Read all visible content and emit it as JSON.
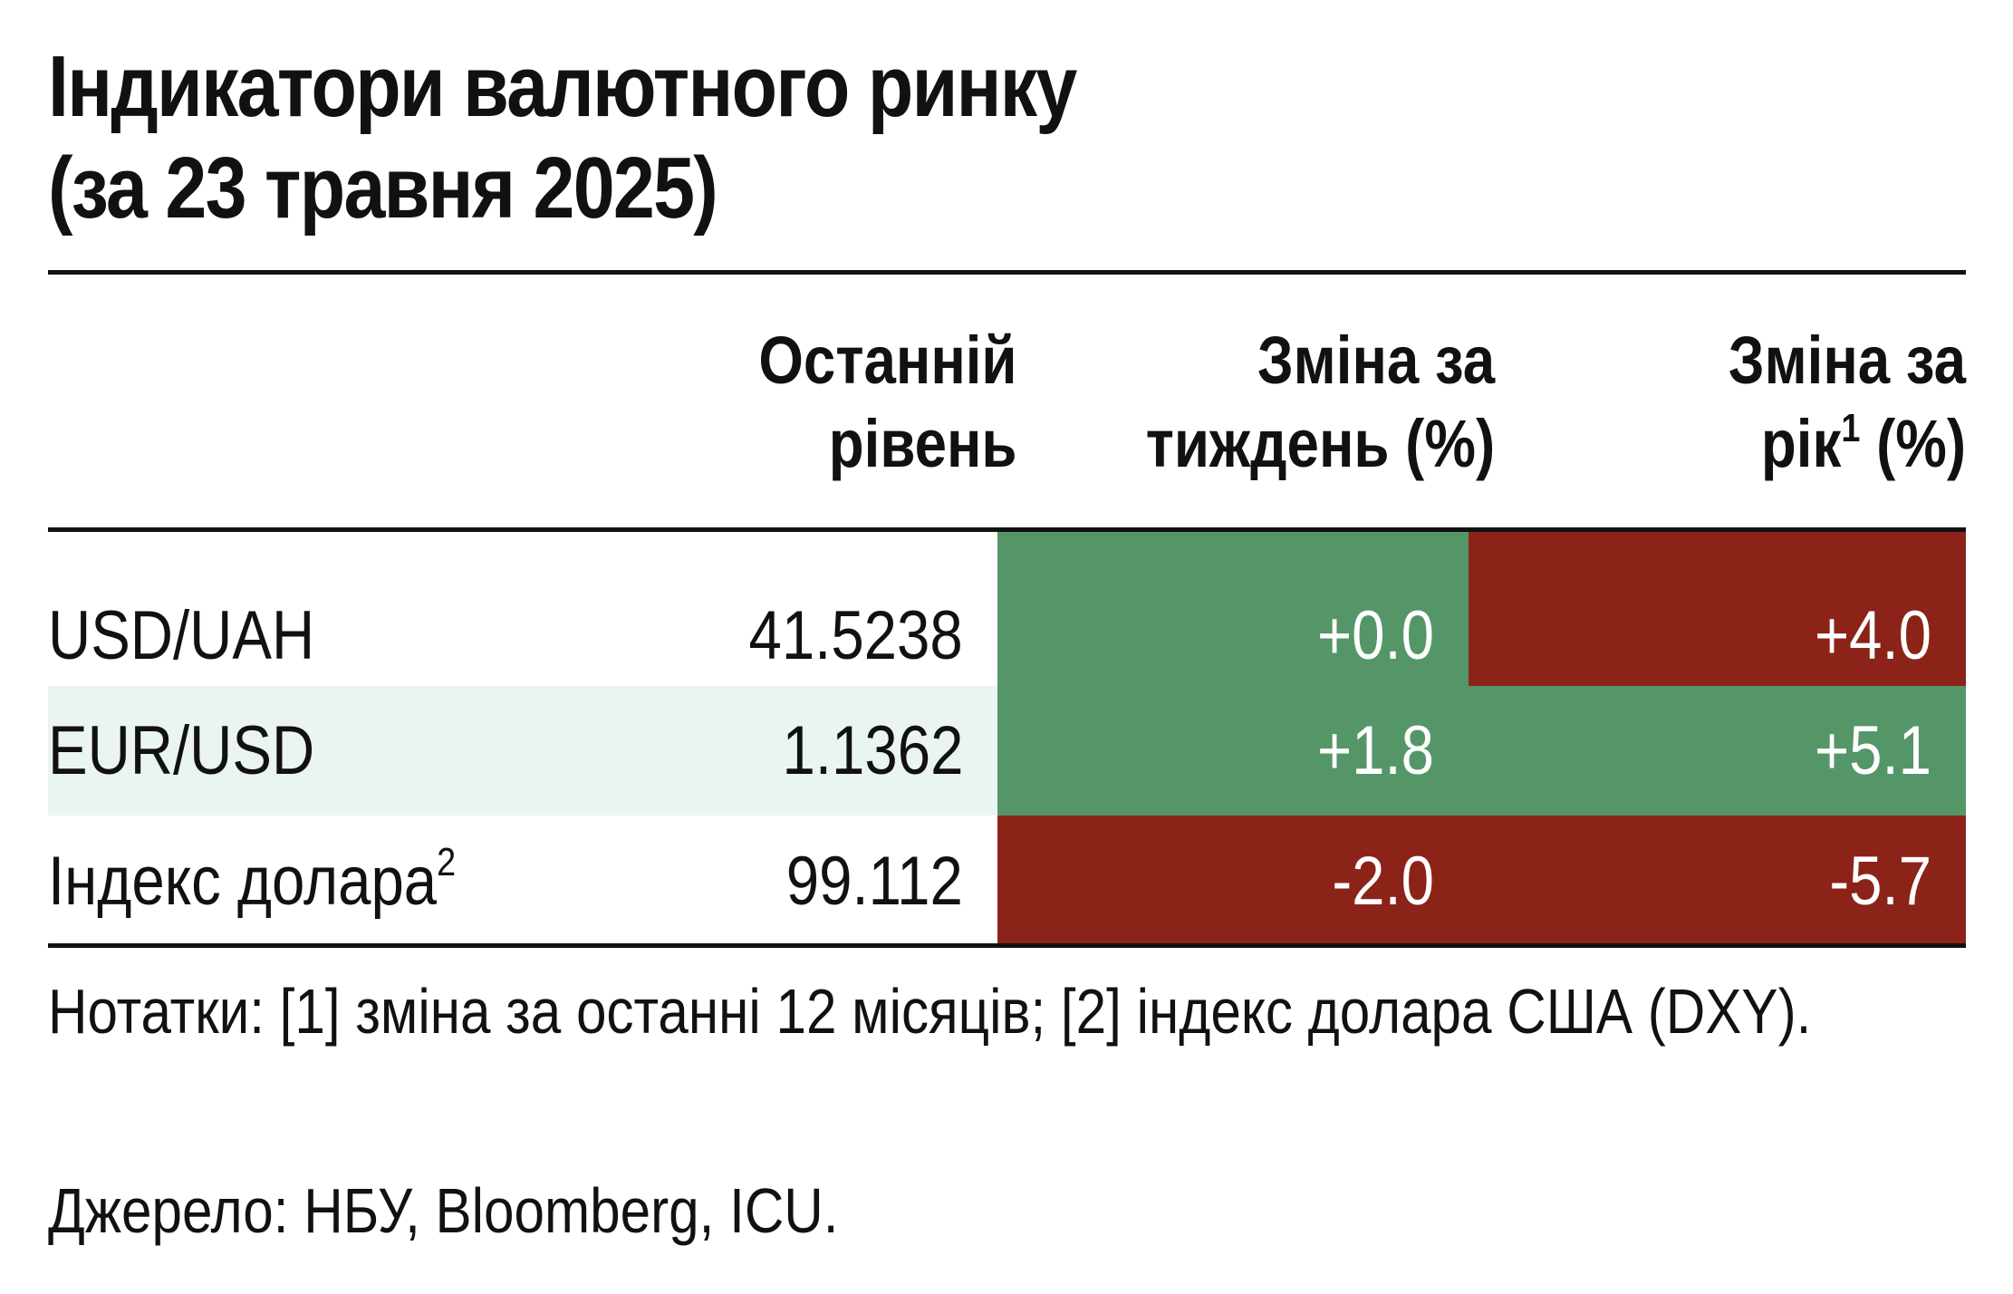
{
  "title_line1": "Індикатори валютного ринку",
  "title_line2": "(за 23 травня 2025)",
  "colors": {
    "positive_green": "#559668",
    "negative_red": "#8b2318",
    "zebra_row": "#eaf4f2",
    "rule": "#111111"
  },
  "chart_data": {
    "type": "table",
    "columns": [
      {
        "line1": "Останній",
        "line2": "рівень",
        "sup": ""
      },
      {
        "line1": "Зміна за",
        "line2": "тиждень (%)",
        "sup": ""
      },
      {
        "line1": "Зміна за",
        "line2_pre": "рік",
        "sup": "1",
        "line2_post": " (%)"
      }
    ],
    "rows": [
      {
        "label": "USD/UAH",
        "label_sup": "",
        "level": "41.5238",
        "week": "+0.0",
        "year": "+4.0",
        "week_color": "positive_green",
        "year_color": "negative_red",
        "zebra": false
      },
      {
        "label": "EUR/USD",
        "label_sup": "",
        "level": "1.1362",
        "week": "+1.8",
        "year": "+5.1",
        "week_color": "positive_green",
        "year_color": "positive_green",
        "zebra": true
      },
      {
        "label": "Індекс долара",
        "label_sup": "2",
        "level": "99.112",
        "week": "-2.0",
        "year": "-5.7",
        "week_color": "negative_red",
        "year_color": "negative_red",
        "zebra": false
      }
    ]
  },
  "notes": "Нотатки: [1] зміна за останні 12 місяців; [2] індекс долара США (DXY).",
  "source": "Джерело: НБУ, Bloomberg, ICU."
}
